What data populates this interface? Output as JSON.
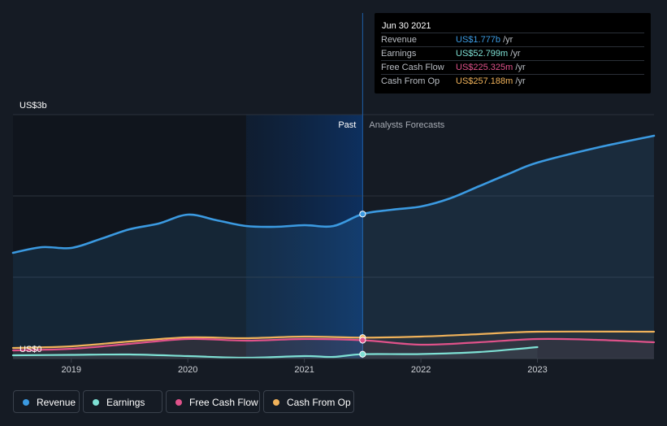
{
  "tooltip": {
    "date": "Jun 30 2021",
    "rows": [
      {
        "label": "Revenue",
        "value": "US$1.777b",
        "unit": "/yr",
        "color": "#3b9ae1"
      },
      {
        "label": "Earnings",
        "value": "US$52.799m",
        "unit": "/yr",
        "color": "#7ee0d4"
      },
      {
        "label": "Free Cash Flow",
        "value": "US$225.325m",
        "unit": "/yr",
        "color": "#e0528a"
      },
      {
        "label": "Cash From Op",
        "value": "US$257.188m",
        "unit": "/yr",
        "color": "#f0b25a"
      }
    ]
  },
  "legend": [
    {
      "label": "Revenue",
      "color": "#3b9ae1"
    },
    {
      "label": "Earnings",
      "color": "#7ee0d4"
    },
    {
      "label": "Free Cash Flow",
      "color": "#e0528a"
    },
    {
      "label": "Cash From Op",
      "color": "#f0b25a"
    }
  ],
  "chart_data": {
    "type": "line",
    "ylabel_top": "US$3b",
    "ylabel_bottom": "US$0",
    "ylim": [
      0,
      3.0
    ],
    "xlim": [
      2018.5,
      2024.0
    ],
    "x_ticks": [
      "2019",
      "2020",
      "2021",
      "2022",
      "2023"
    ],
    "x_tick_values": [
      2019,
      2020,
      2021,
      2022,
      2023
    ],
    "past_label": "Past",
    "forecast_label": "Analysts Forecasts",
    "divider_x": 2021.5,
    "highlight_start_x": 2020.5,
    "series": [
      {
        "name": "Revenue",
        "color": "#3b9ae1",
        "area": true,
        "points": [
          [
            2018.5,
            1.3
          ],
          [
            2018.75,
            1.37
          ],
          [
            2019.0,
            1.36
          ],
          [
            2019.25,
            1.47
          ],
          [
            2019.5,
            1.59
          ],
          [
            2019.75,
            1.66
          ],
          [
            2020.0,
            1.77
          ],
          [
            2020.25,
            1.7
          ],
          [
            2020.5,
            1.63
          ],
          [
            2020.75,
            1.62
          ],
          [
            2021.0,
            1.64
          ],
          [
            2021.25,
            1.63
          ],
          [
            2021.5,
            1.777
          ],
          [
            2021.75,
            1.83
          ],
          [
            2022.0,
            1.87
          ],
          [
            2022.25,
            1.97
          ],
          [
            2022.5,
            2.12
          ],
          [
            2022.75,
            2.27
          ],
          [
            2023.0,
            2.41
          ],
          [
            2023.5,
            2.59
          ],
          [
            2024.0,
            2.74
          ]
        ]
      },
      {
        "name": "Earnings",
        "color": "#7ee0d4",
        "area": false,
        "points": [
          [
            2018.5,
            0.04
          ],
          [
            2019.0,
            0.045
          ],
          [
            2019.5,
            0.05
          ],
          [
            2020.0,
            0.03
          ],
          [
            2020.5,
            0.01
          ],
          [
            2021.0,
            0.03
          ],
          [
            2021.25,
            0.02
          ],
          [
            2021.5,
            0.052799
          ],
          [
            2022.0,
            0.055
          ],
          [
            2022.5,
            0.08
          ],
          [
            2023.0,
            0.14
          ]
        ]
      },
      {
        "name": "Free Cash Flow",
        "color": "#e0528a",
        "area": false,
        "points": [
          [
            2018.5,
            0.1
          ],
          [
            2019.0,
            0.12
          ],
          [
            2019.5,
            0.18
          ],
          [
            2020.0,
            0.24
          ],
          [
            2020.5,
            0.22
          ],
          [
            2021.0,
            0.24
          ],
          [
            2021.5,
            0.225325
          ],
          [
            2022.0,
            0.17
          ],
          [
            2022.5,
            0.2
          ],
          [
            2023.0,
            0.24
          ],
          [
            2023.5,
            0.23
          ],
          [
            2024.0,
            0.2
          ]
        ]
      },
      {
        "name": "Cash From Op",
        "color": "#f0b25a",
        "area": false,
        "points": [
          [
            2018.5,
            0.13
          ],
          [
            2019.0,
            0.15
          ],
          [
            2019.5,
            0.21
          ],
          [
            2020.0,
            0.26
          ],
          [
            2020.5,
            0.25
          ],
          [
            2021.0,
            0.27
          ],
          [
            2021.5,
            0.257188
          ],
          [
            2022.0,
            0.27
          ],
          [
            2022.5,
            0.3
          ],
          [
            2023.0,
            0.33
          ],
          [
            2024.0,
            0.33
          ]
        ]
      }
    ]
  }
}
